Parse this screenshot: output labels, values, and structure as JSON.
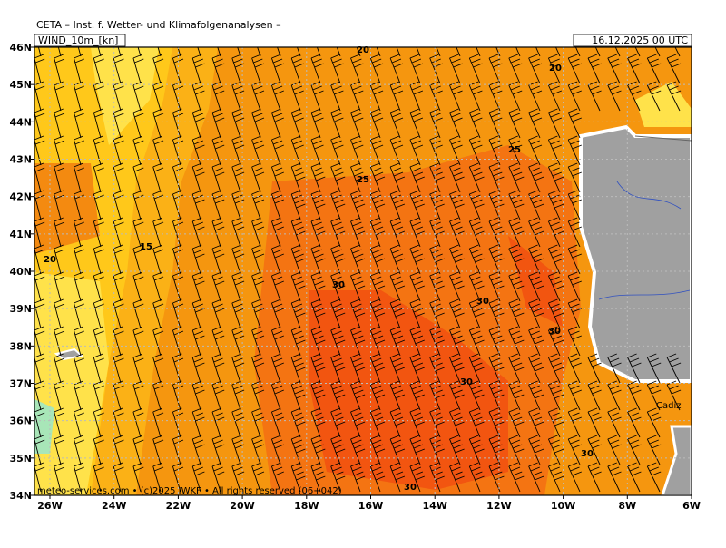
{
  "header": {
    "institute": "CETA – Inst. f. Wetter- und Klimafolgenanalysen –",
    "field": "WIND_10m_[kn]",
    "valid": "16.12.2025 00 UTC"
  },
  "lat_labels": [
    "46N",
    "45N",
    "44N",
    "43N",
    "42N",
    "41N",
    "40N",
    "39N",
    "38N",
    "37N",
    "36N",
    "35N",
    "34N"
  ],
  "lon_labels": [
    "26W",
    "24W",
    "22W",
    "20W",
    "18W",
    "16W",
    "14W",
    "12W",
    "10W",
    "8W",
    "6W"
  ],
  "contour_labels": [
    "20",
    "20",
    "25",
    "25",
    "15",
    "20",
    "30",
    "30",
    "30",
    "30",
    "30",
    "30"
  ],
  "place": "Cadiz",
  "footer": "meteo-services.com • (c)2025 IWKF • All rights reserved (06+042)"
}
